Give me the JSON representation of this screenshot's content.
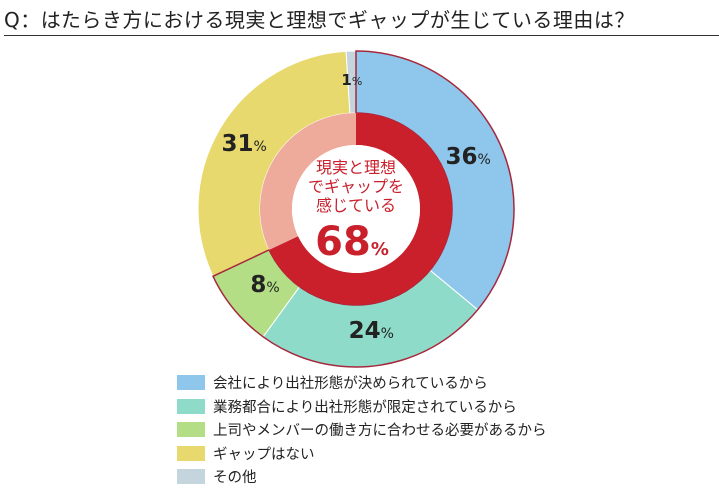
{
  "question_title": "Q：はたらき方における現実と理想でギャップが生じている理由は？",
  "chart_data": {
    "type": "pie",
    "variant": "donut",
    "categories": [
      "会社により出社形態が決められているから",
      "業務都合により出社形態が限定されているから",
      "上司やメンバーの働き方に合わせる必要があるから",
      "ギャップはない",
      "その他"
    ],
    "values": [
      36,
      24,
      8,
      31,
      1
    ],
    "value_suffix": "%",
    "colors": [
      "#8ec6ec",
      "#8edbc9",
      "#b3de86",
      "#e8d96e",
      "#c5d5de"
    ],
    "highlight_outline_color": "#a5283c",
    "center": {
      "label_lines": [
        "現実と理想",
        "でギャップを",
        "感じている"
      ],
      "value": "68",
      "value_suffix": "%",
      "ring_color": "#c9202c",
      "inner_fill_color": "#eeaa9a",
      "text_color": "#c9202c"
    },
    "legend_position": "bottom"
  }
}
